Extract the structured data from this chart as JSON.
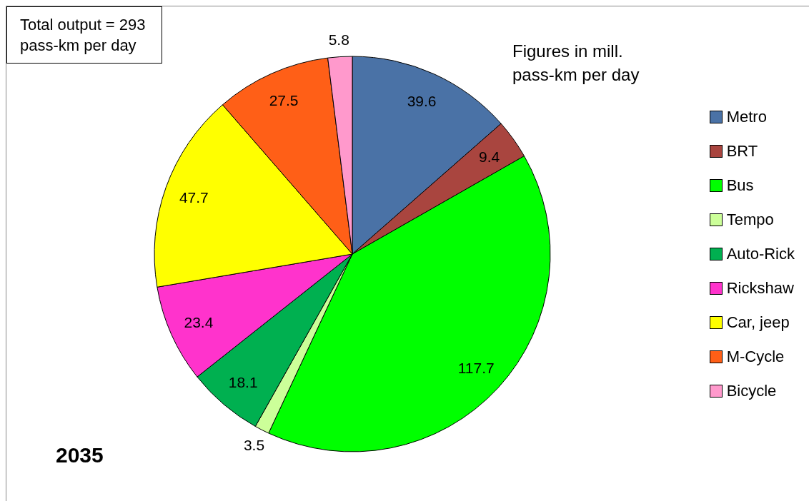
{
  "chart_data": {
    "type": "pie",
    "title": "2035",
    "annotations": [
      "Total output = 293 pass-km per day",
      "Figures in mill. pass-km per day"
    ],
    "categories": [
      "Metro",
      "BRT",
      "Bus",
      "Tempo",
      "Auto-Rick",
      "Rickshaw",
      "Car, jeep",
      "M-Cycle",
      "Bicycle"
    ],
    "values": [
      39.6,
      9.4,
      117.7,
      3.5,
      18.1,
      23.4,
      47.7,
      27.5,
      5.8
    ],
    "colors": [
      "#4a72a6",
      "#a9453f",
      "#00ff00",
      "#ccff99",
      "#00b050",
      "#ff33cc",
      "#ffff00",
      "#ff5f17",
      "#ff99cc"
    ],
    "data_labels": true,
    "legend": "right"
  }
}
